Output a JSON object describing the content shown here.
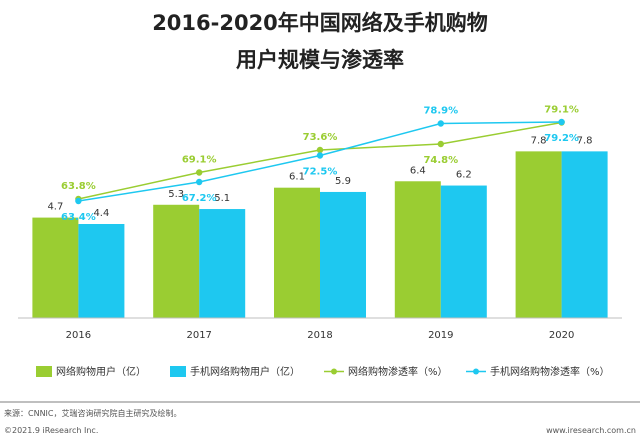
{
  "colors": {
    "green": "#9ACD32",
    "blue": "#1EC8F0",
    "axis": "#bfbfbf",
    "rule": "#7f7f7f"
  },
  "chart_data": {
    "type": "bar",
    "title_line1": "2016-2020年中国网络及手机购物",
    "title_line2": "用户规模与渗透率",
    "categories": [
      "2016",
      "2017",
      "2018",
      "2019",
      "2020"
    ],
    "series": [
      {
        "name": "网络购物用户（亿）",
        "type": "bar",
        "color": "#9ACD32",
        "values": [
          4.7,
          5.3,
          6.1,
          6.4,
          7.8
        ]
      },
      {
        "name": "手机网络购物用户（亿）",
        "type": "bar",
        "color": "#1EC8F0",
        "values": [
          4.4,
          5.1,
          5.9,
          6.2,
          7.8
        ]
      },
      {
        "name": "网络购物渗透率（%）",
        "type": "line",
        "color": "#9ACD32",
        "values": [
          63.8,
          69.1,
          73.6,
          74.8,
          79.1
        ],
        "labels": [
          "63.8%",
          "69.1%",
          "73.6%",
          "74.8%",
          "79.1%"
        ]
      },
      {
        "name": "手机网络购物渗透率（%）",
        "type": "line",
        "color": "#1EC8F0",
        "values": [
          63.4,
          67.2,
          72.5,
          78.9,
          79.2
        ],
        "labels": [
          "63.4%",
          "67.2%",
          "72.5%",
          "78.9%",
          "79.2%"
        ]
      }
    ],
    "bar_labels": {
      "green": [
        "4.7",
        "5.3",
        "6.1",
        "6.4",
        "7.8"
      ],
      "blue": [
        "4.4",
        "5.1",
        "5.9",
        "6.2",
        "7.8"
      ]
    },
    "bar_ylim": [
      0,
      8.8
    ],
    "line_ylim": [
      60,
      82
    ],
    "grid": false,
    "legend_position": "bottom"
  },
  "footer": {
    "source": "来源：CNNIC，艾瑞咨询研究院自主研究及绘制。",
    "copyright": "©2021.9 iResearch Inc.",
    "website": "www.iresearch.com.cn"
  }
}
